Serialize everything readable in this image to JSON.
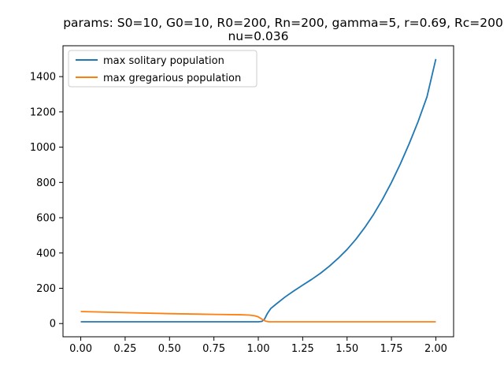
{
  "chart_data": {
    "type": "line",
    "title_line1": "params: S0=10, G0=10, R0=200, Rn=200, gamma=5, r=0.69, Rc=200,",
    "title_line2": "nu=0.036",
    "xlabel": "",
    "ylabel": "",
    "xlim": [
      -0.1,
      2.1
    ],
    "ylim": [
      -75,
      1575
    ],
    "xticks": [
      "0.00",
      "0.25",
      "0.50",
      "0.75",
      "1.00",
      "1.25",
      "1.50",
      "1.75",
      "2.00"
    ],
    "yticks": [
      "0",
      "200",
      "400",
      "600",
      "800",
      "1000",
      "1200",
      "1400"
    ],
    "grid": false,
    "legend_placement": "top-left",
    "series": [
      {
        "name": "max solitary population",
        "color": "#1f77b4",
        "points": [
          [
            0,
            10
          ],
          [
            0.5,
            10
          ],
          [
            1.0,
            10
          ],
          [
            1.02,
            12
          ],
          [
            1.035,
            25
          ],
          [
            1.05,
            55
          ],
          [
            1.07,
            85
          ],
          [
            1.1,
            110
          ],
          [
            1.15,
            150
          ],
          [
            1.2,
            185
          ],
          [
            1.25,
            218
          ],
          [
            1.3,
            250
          ],
          [
            1.35,
            285
          ],
          [
            1.4,
            325
          ],
          [
            1.45,
            370
          ],
          [
            1.5,
            420
          ],
          [
            1.55,
            478
          ],
          [
            1.6,
            545
          ],
          [
            1.65,
            620
          ],
          [
            1.7,
            705
          ],
          [
            1.75,
            800
          ],
          [
            1.8,
            905
          ],
          [
            1.85,
            1020
          ],
          [
            1.9,
            1145
          ],
          [
            1.95,
            1285
          ],
          [
            2.0,
            1500
          ]
        ]
      },
      {
        "name": "max gregarious population",
        "color": "#ff7f0e",
        "points": [
          [
            0,
            68
          ],
          [
            0.25,
            62
          ],
          [
            0.5,
            56
          ],
          [
            0.75,
            52
          ],
          [
            0.9,
            50
          ],
          [
            0.95,
            48
          ],
          [
            0.98,
            44
          ],
          [
            1.0,
            38
          ],
          [
            1.02,
            25
          ],
          [
            1.04,
            14
          ],
          [
            1.06,
            10
          ],
          [
            1.1,
            10
          ],
          [
            1.5,
            10
          ],
          [
            2.0,
            10
          ]
        ]
      }
    ]
  }
}
